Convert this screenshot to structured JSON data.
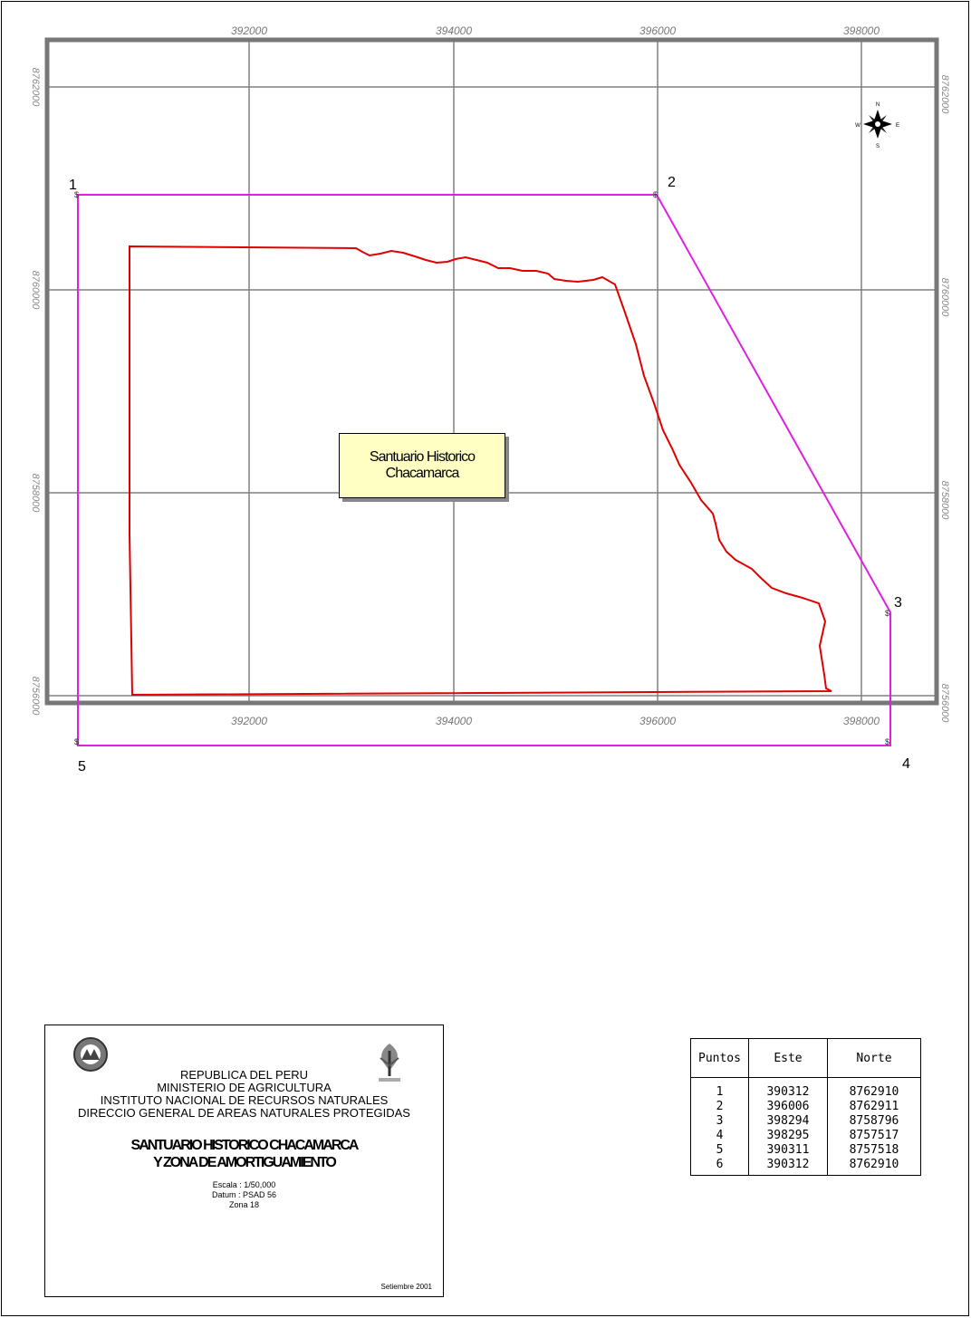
{
  "map": {
    "grid_x_labels": [
      "392000",
      "394000",
      "396000",
      "398000"
    ],
    "grid_y_labels": [
      "8762000",
      "8760000",
      "8758000",
      "8756000"
    ],
    "point_numbers": [
      "1",
      "2",
      "3",
      "4",
      "5"
    ],
    "point_symbol": "$",
    "area_label_line1": "Santuario Historico",
    "area_label_line2": "Chacamarca",
    "compass": {
      "n": "N",
      "s": "S",
      "e": "E",
      "w": "W"
    },
    "colors": {
      "buffer_zone": "#e020e0",
      "sanctuary": "#e00000",
      "grid": "#808080",
      "label_bg": "#ffffc4"
    }
  },
  "title_block": {
    "line1": "REPUBLICA DEL PERU",
    "line2": "MINISTERIO DE AGRICULTURA",
    "line3": "INSTITUTO NACIONAL DE RECURSOS NATURALES",
    "line4": "DIRECCIO GENERAL DE AREAS NATURALES PROTEGIDAS",
    "title1": "SANTUARIO HISTORICO CHACAMARCA",
    "title2": "Y ZONA DE AMORTIGUAMIENTO",
    "scale": "Escala : 1/50,000",
    "datum": "Datum : PSAD 56",
    "zone": "Zona 18",
    "date": "Setiembre 2001"
  },
  "coord_table": {
    "headers": [
      "Puntos",
      "Este",
      "Norte"
    ],
    "rows": [
      [
        "1",
        "390312",
        "8762910"
      ],
      [
        "2",
        "396006",
        "8762911"
      ],
      [
        "3",
        "398294",
        "8758796"
      ],
      [
        "4",
        "398295",
        "8757517"
      ],
      [
        "5",
        "390311",
        "8757518"
      ],
      [
        "6",
        "390312",
        "8762910"
      ]
    ]
  }
}
